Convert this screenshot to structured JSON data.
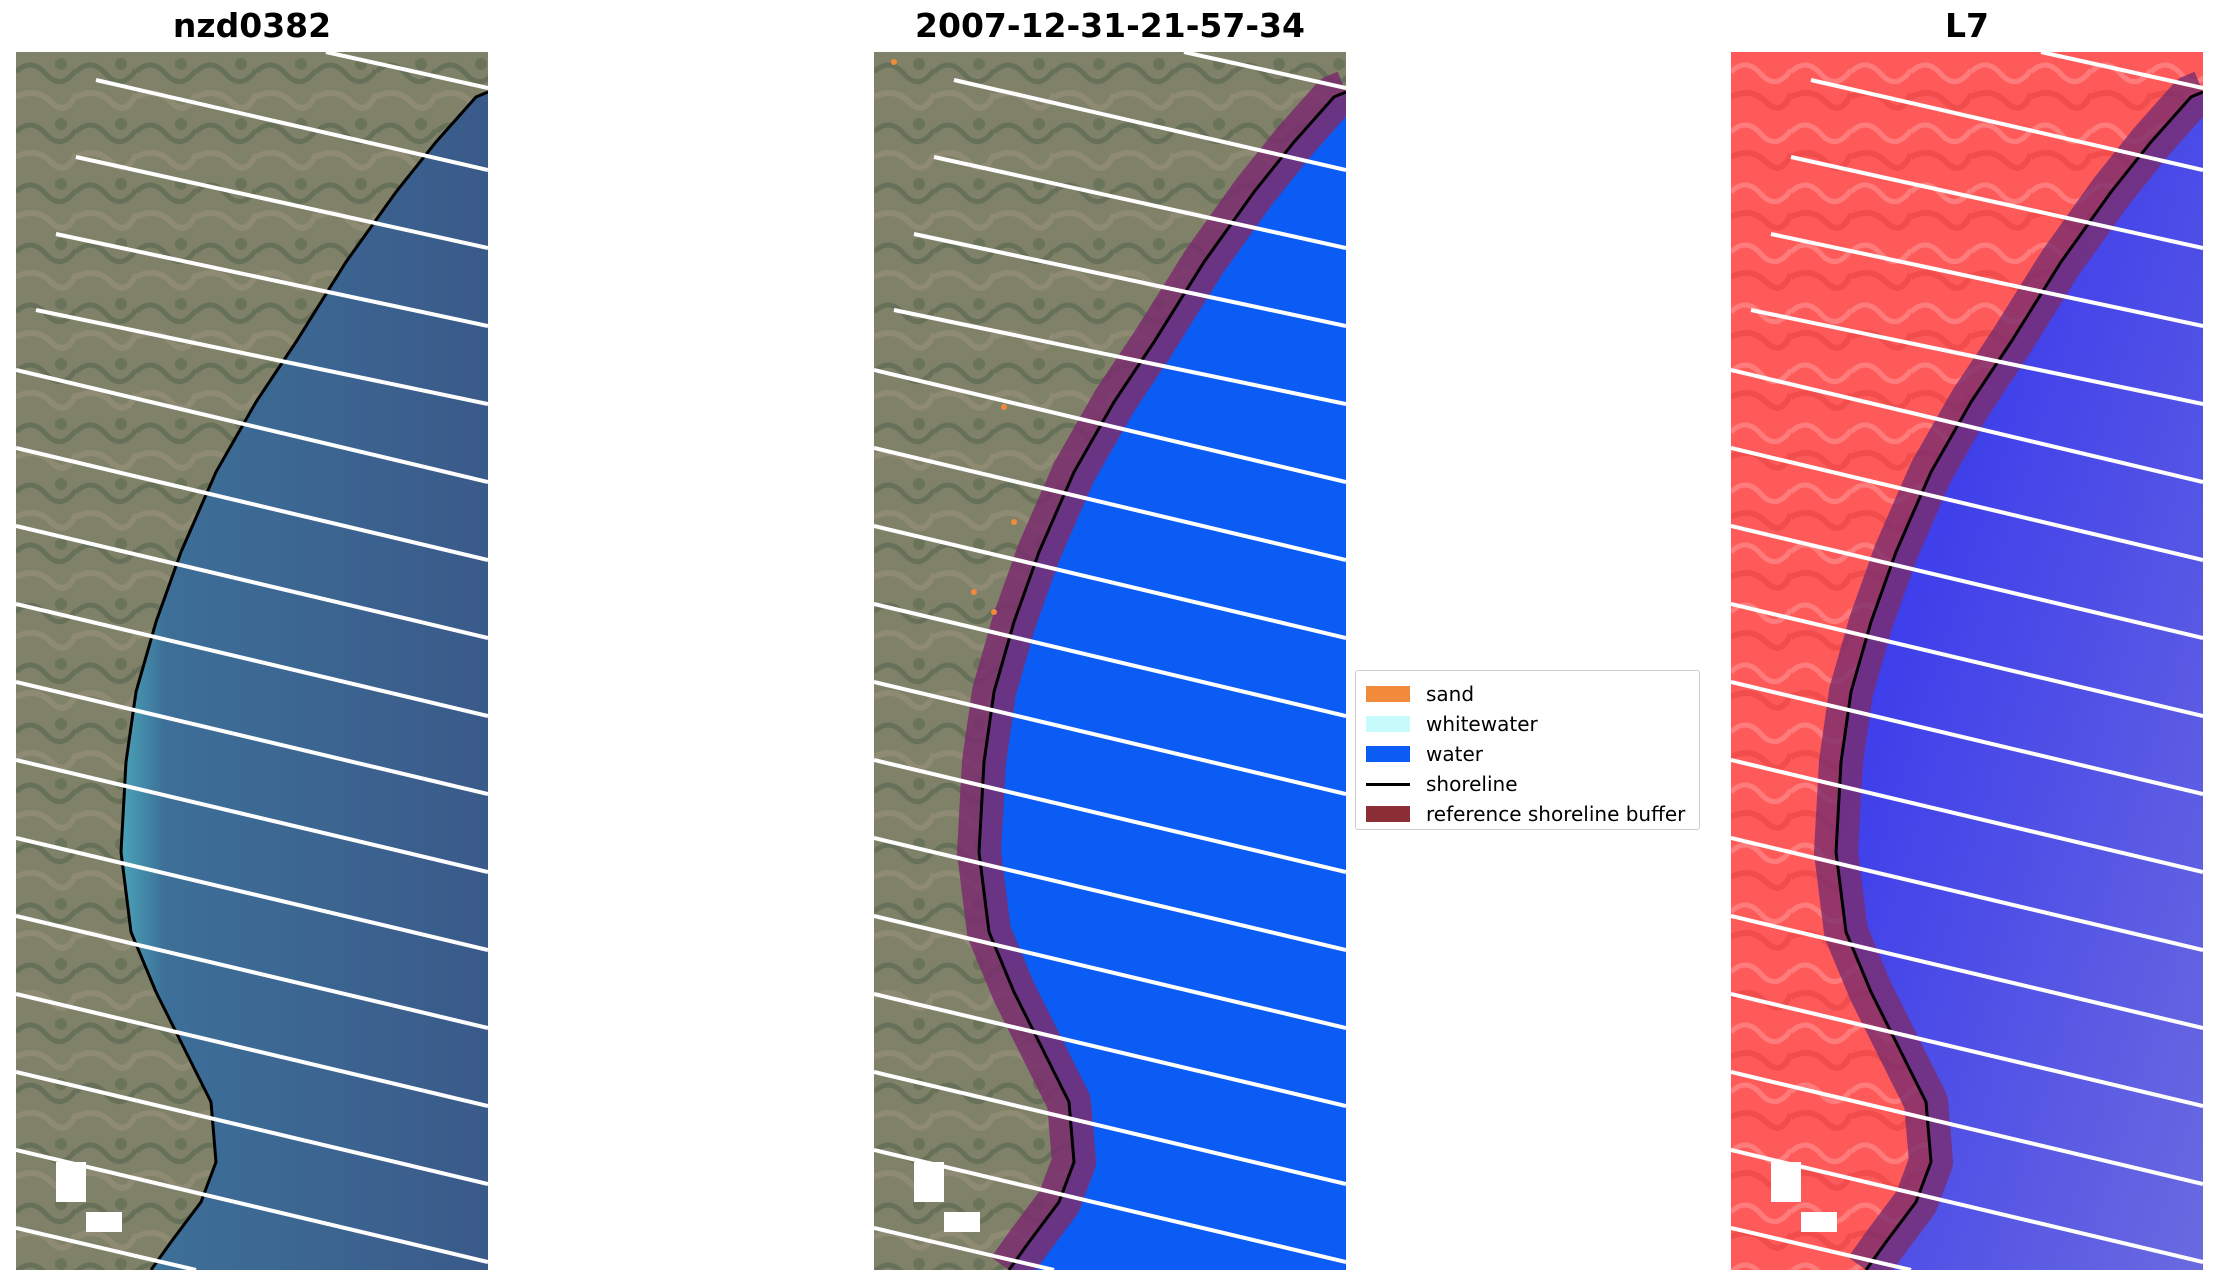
{
  "panels": [
    {
      "id": "rgb",
      "title": "nzd0382"
    },
    {
      "id": "classified",
      "title": "2007-12-31-21-57-34"
    },
    {
      "id": "mndwi",
      "title": "L7"
    }
  ],
  "legend": {
    "items": [
      {
        "label": "sand",
        "color": "#f28a3c",
        "kind": "patch"
      },
      {
        "label": "whitewater",
        "color": "#c8fbfb",
        "kind": "patch"
      },
      {
        "label": "water",
        "color": "#0a5cf5",
        "kind": "patch"
      },
      {
        "label": "shoreline",
        "color": "#000000",
        "kind": "line"
      },
      {
        "label": "reference shoreline buffer",
        "color": "#8b2e35",
        "kind": "patch"
      }
    ]
  },
  "colors": {
    "land": "#7d7f66",
    "sea_rgb": "#3b5f8d",
    "water_class": "#0a5cf5",
    "buffer": "#7a2d6e",
    "land_false": "#ff5252",
    "sea_false": "#3f3fe6",
    "scanline": "#ffffff"
  }
}
